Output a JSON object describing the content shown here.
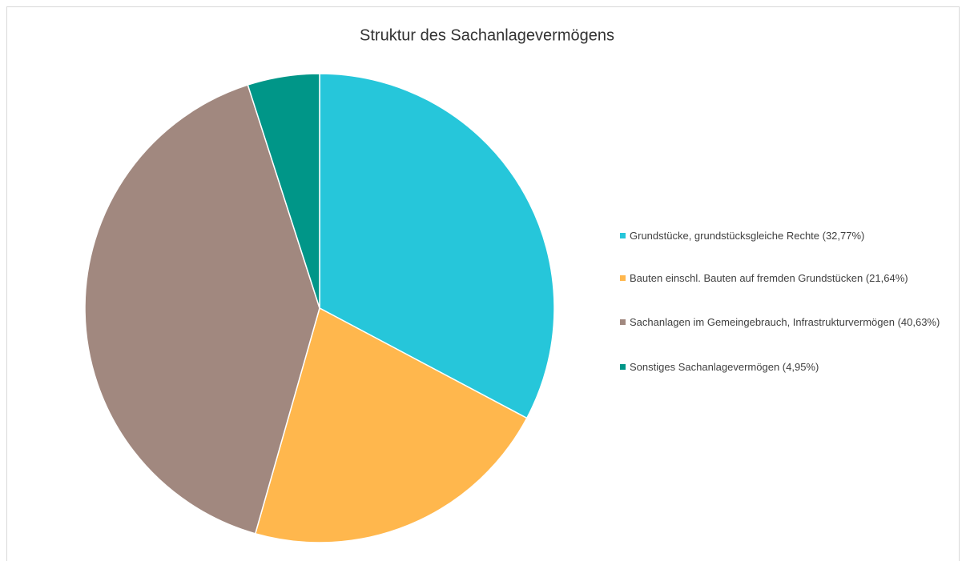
{
  "chart_data": {
    "type": "pie",
    "title": "Struktur des Sachanlagevermögens",
    "categories": [
      "Grundstücke, grundstücksgleiche Rechte (32,77%)",
      "Bauten einschl. Bauten auf fremden Grundstücken (21,64%)",
      "Sachanlagen im Gemeingebrauch, Infrastrukturvermögen (40,63%)",
      "Sonstiges Sachanlagevermögen (4,95%)"
    ],
    "values": [
      32.77,
      21.64,
      40.63,
      4.95
    ],
    "colors": [
      "#26c6da",
      "#ffb74d",
      "#a1887f",
      "#009688"
    ],
    "legend": "right"
  }
}
